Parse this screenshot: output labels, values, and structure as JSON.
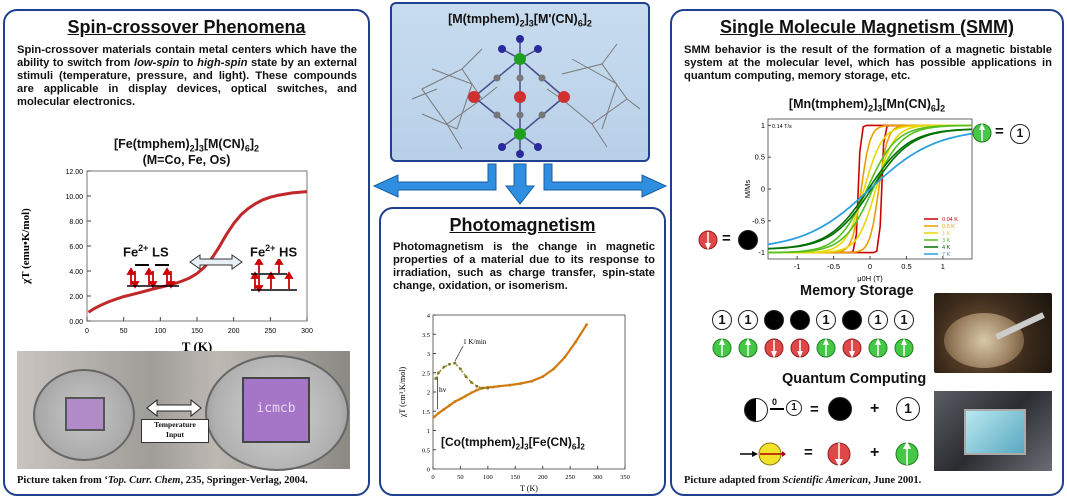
{
  "left": {
    "title": "Spin-crossover Phenomena",
    "text_pre": "Spin-crossover materials contain metal centers which have the ability to switch from ",
    "text_lowspin": "low-spin",
    "text_mid": " to ",
    "text_highspin": "high-spin",
    "text_post": " state by an external stimuli (temperature, pressure, and light). These compounds are applicable in display devices, optical switches, and molecular electronics.",
    "formula": "[Fe(tmphem)2]3[M(CN)6]2",
    "subformula": "(M=Co, Fe, Os)",
    "ls_label": "Fe2+ LS",
    "hs_label": "Fe2+ HS",
    "photo_arrow_label_1": "Temperature",
    "photo_arrow_label_2": "Input",
    "photo_logo": "icmcb",
    "credit_pre": "Picture taken from ‘",
    "credit_italic": "Top. Curr. Chem",
    "credit_post": ", 235, Springer-Verlag, 2004."
  },
  "center": {
    "structure_formula": "[M(tmphem)2]3[M'(CN)6]2",
    "title": "Photomagnetism",
    "text": "Photomagnetism is the change in magnetic properties of a material due to its response to irradiation, such as charge transfer, spin-state change, oxidation, or isomerism.",
    "formula": "[Co(tmphem)2]3[Fe(CN)6]2",
    "rate_label": "1 K/min",
    "hv_label": "hv"
  },
  "right": {
    "title": "Single Molecule Magnetism (SMM)",
    "text": "SMM behavior is the result of the formation of a magnetic bistable system at the molecular level, which has possible applications in quantum computing, memory storage, etc.",
    "formula": "[Mn(tmphem)2]3[Mn(CN)6]2",
    "inset_label": "0.14 T/s",
    "memory_title": "Memory Storage",
    "memory_bits": [
      "1",
      "1",
      "0",
      "0",
      "1",
      "0",
      "1",
      "1"
    ],
    "quantum_title": "Quantum Computing",
    "one_symbol": "1",
    "zero_symbol": "0",
    "plus": "+",
    "equals": "=",
    "credit_pre": "Picture adapted from ",
    "credit_italic": "Scientific American",
    "credit_post": ", June 2001."
  },
  "chart_data": [
    {
      "type": "line",
      "title": "",
      "xlabel": "T (K)",
      "ylabel": "χT (emu•K/mol)",
      "xlim": [
        0,
        300
      ],
      "ylim": [
        0,
        12
      ],
      "x_ticks": [
        "0",
        "50",
        "100",
        "150",
        "200",
        "250",
        "300"
      ],
      "y_ticks": [
        "0.00",
        "2.00",
        "4.00",
        "6.00",
        "8.00",
        "10.00",
        "12.00"
      ],
      "color": "#c0282a",
      "series": [
        {
          "x": [
            2,
            10,
            20,
            30,
            40,
            50,
            60,
            70,
            80,
            90,
            100,
            110,
            120,
            130,
            140,
            150,
            160,
            170,
            180,
            190,
            200,
            210,
            220,
            230,
            240,
            250,
            260,
            270,
            280,
            290,
            300
          ],
          "y": [
            0.7,
            1.0,
            1.3,
            1.55,
            1.75,
            1.95,
            2.1,
            2.25,
            2.4,
            2.55,
            2.7,
            2.85,
            3.0,
            3.2,
            3.45,
            3.8,
            4.3,
            5.0,
            5.9,
            6.9,
            7.8,
            8.5,
            9.0,
            9.4,
            9.7,
            9.9,
            10.05,
            10.15,
            10.25,
            10.3,
            10.35
          ]
        }
      ]
    },
    {
      "type": "scatter",
      "title": "",
      "xlabel": "T (K)",
      "ylabel": "χT (cm³.K/mol)",
      "xlim": [
        0,
        350
      ],
      "ylim": [
        0,
        4
      ],
      "x_ticks": [
        "0",
        "50",
        "100",
        "150",
        "200",
        "250",
        "300",
        "350"
      ],
      "y_ticks": [
        "0",
        "0.5",
        "1",
        "1.5",
        "2",
        "2.5",
        "3",
        "3.5",
        "4"
      ],
      "color": "#d07a10",
      "series": [
        {
          "name": "",
          "x": [
            2,
            10,
            20,
            30,
            40,
            50,
            60,
            70,
            80,
            90,
            100,
            110,
            120,
            140,
            160,
            180,
            200,
            220,
            240,
            260,
            280
          ],
          "y": [
            1.35,
            1.45,
            1.55,
            1.65,
            1.75,
            1.82,
            1.9,
            1.98,
            2.05,
            2.1,
            2.12,
            2.13,
            2.15,
            2.18,
            2.22,
            2.28,
            2.4,
            2.6,
            2.9,
            3.3,
            3.75
          ]
        },
        {
          "name": "",
          "x": [
            5,
            10,
            20,
            30,
            40,
            50,
            60,
            70,
            80,
            90,
            100
          ],
          "y": [
            2.35,
            2.5,
            2.65,
            2.72,
            2.75,
            2.6,
            2.4,
            2.25,
            2.15,
            2.1,
            2.1
          ]
        }
      ]
    },
    {
      "type": "line",
      "title": "",
      "xlabel": "μ0H (T)",
      "ylabel": "M/Ms",
      "xlim": [
        -1.4,
        1.4
      ],
      "ylim": [
        -1.1,
        1.1
      ],
      "x_ticks": [
        "-1",
        "-0.5",
        "0",
        "0.5",
        "1"
      ],
      "y_ticks": [
        "-1",
        "-0.5",
        "0",
        "0.5",
        "1"
      ],
      "legend_position": "bottom-right",
      "series": [
        {
          "name": "0.04 K",
          "color": "#cc0000",
          "coercive": 0.04,
          "width": 0.03
        },
        {
          "name": "0.3 K",
          "color": "#e8a000",
          "coercive": 0.03,
          "width": 0.12
        },
        {
          "name": "1 K",
          "color": "#e8d800",
          "coercive": 0.02,
          "width": 0.25
        },
        {
          "name": "3 K",
          "color": "#55c020",
          "coercive": 0.01,
          "width": 0.4
        },
        {
          "name": "4 K",
          "color": "#007000",
          "coercive": 0.005,
          "width": 0.55
        },
        {
          "name": "7 K",
          "color": "#2aa0e0",
          "coercive": 0.0,
          "width": 0.9
        }
      ]
    }
  ]
}
